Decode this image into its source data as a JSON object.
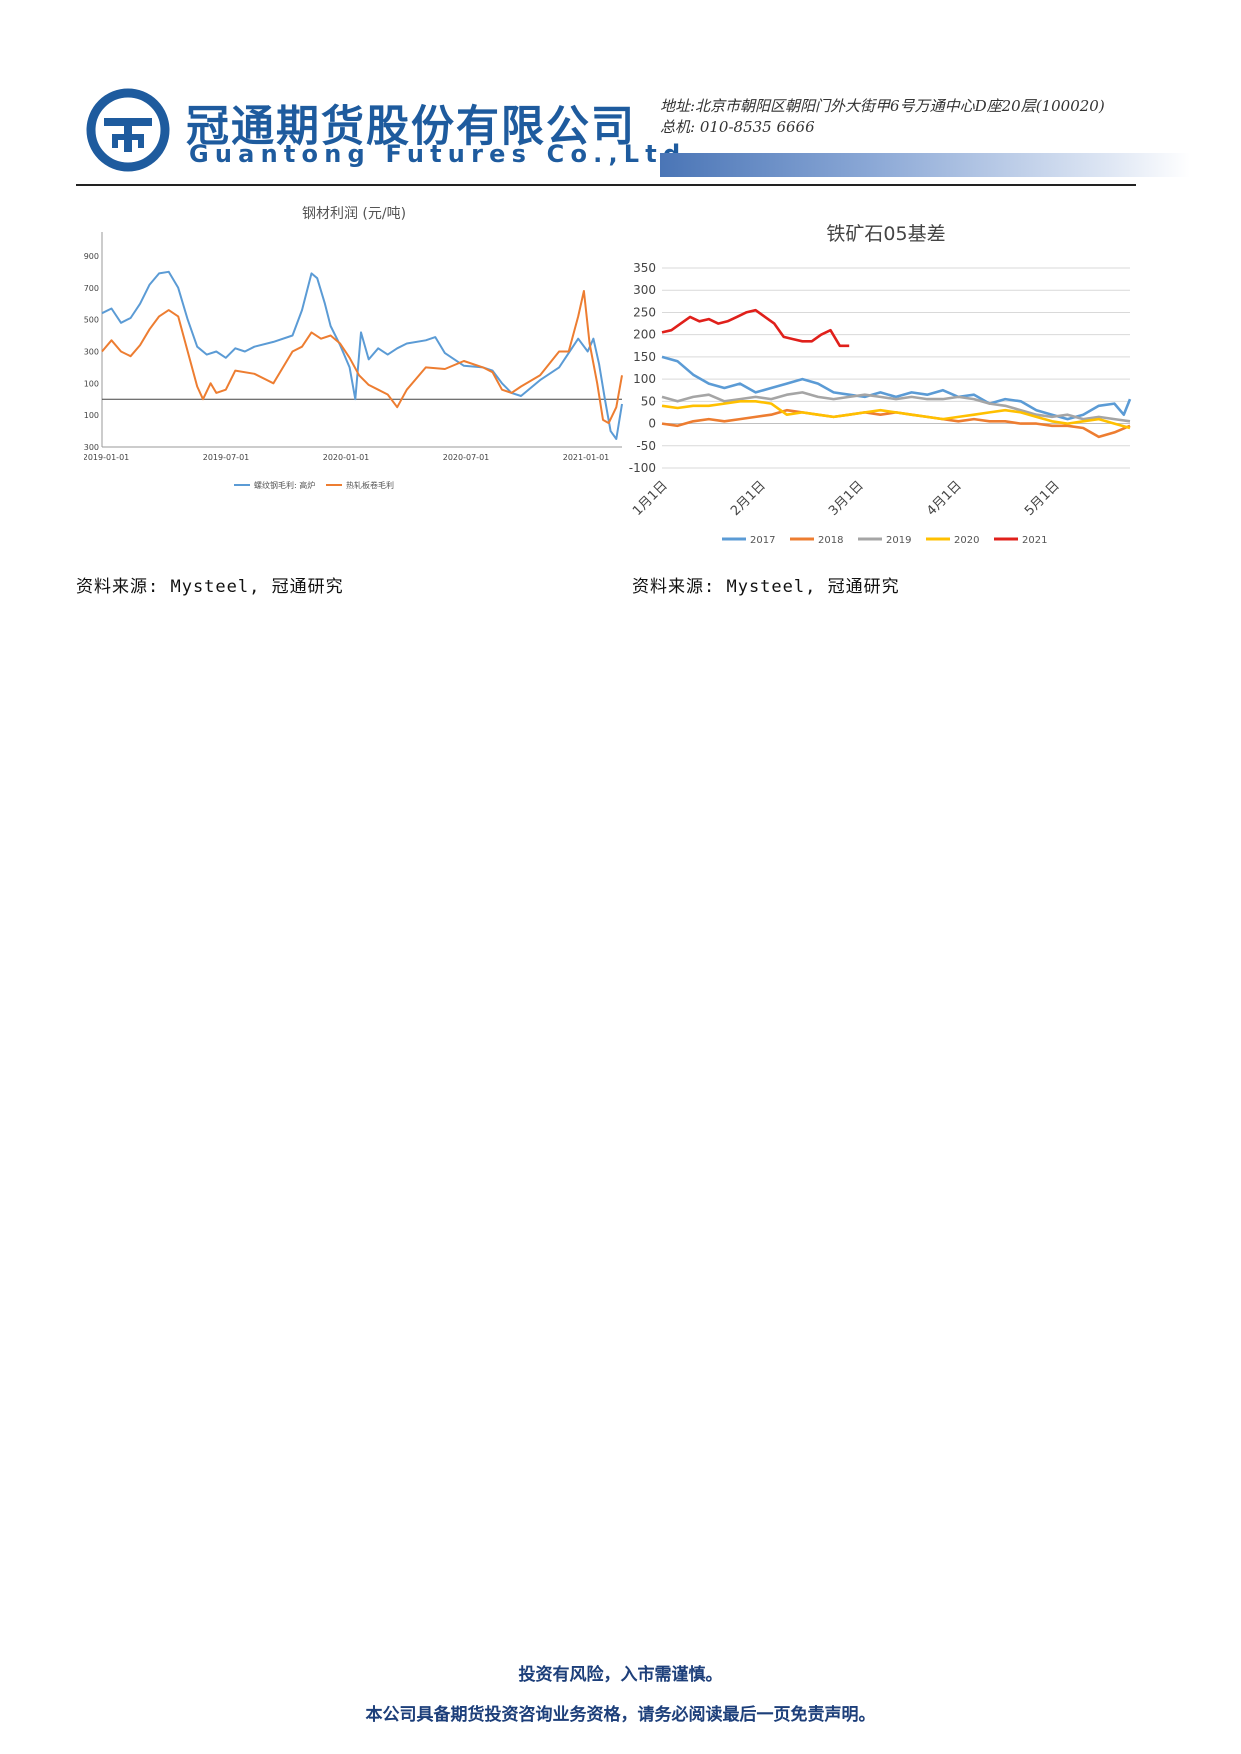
{
  "header": {
    "company_cn": "冠通期货股份有限公司",
    "company_en": "Guantong Futures Co.,Ltd",
    "address": "地址:北京市朝阳区朝阳门外大街甲6号万通中心D座20层(100020)",
    "phone": "总机: 010-8535 6666",
    "brand_color": "#1e5b9e"
  },
  "sources": {
    "left": "资料来源: Mysteel, 冠通研究",
    "right": "资料来源: Mysteel, 冠通研究"
  },
  "footer": {
    "line1": "投资有风险，入市需谨慎。",
    "line2": "本公司具备期货投资咨询业务资格，请务必阅读最后一页免责声明。"
  },
  "chart_data": [
    {
      "type": "line",
      "title": "钢材利润 (元/吨)",
      "xlabel": "",
      "ylabel": "",
      "ylim": [
        -300,
        1000
      ],
      "yticks": [
        900,
        700,
        500,
        300,
        100,
        -100,
        -300
      ],
      "xticks": [
        "2019-01-01",
        "2019-07-01",
        "2020-01-01",
        "2020-07-01",
        "2021-01-01"
      ],
      "xrange": [
        0,
        27.3
      ],
      "grid": false,
      "legend": "bottom",
      "series": [
        {
          "name": "螺纹钢毛利: 高炉",
          "color": "#5b9bd5",
          "points": [
            [
              0,
              540
            ],
            [
              0.5,
              570
            ],
            [
              1,
              480
            ],
            [
              1.5,
              510
            ],
            [
              2,
              600
            ],
            [
              2.5,
              720
            ],
            [
              3,
              790
            ],
            [
              3.5,
              800
            ],
            [
              4,
              700
            ],
            [
              4.5,
              500
            ],
            [
              5,
              330
            ],
            [
              5.5,
              280
            ],
            [
              6,
              300
            ],
            [
              6.5,
              260
            ],
            [
              7,
              320
            ],
            [
              7.5,
              300
            ],
            [
              8,
              330
            ],
            [
              9,
              360
            ],
            [
              10,
              400
            ],
            [
              10.5,
              560
            ],
            [
              11,
              790
            ],
            [
              11.3,
              760
            ],
            [
              11.7,
              600
            ],
            [
              12,
              460
            ],
            [
              12.5,
              340
            ],
            [
              13,
              200
            ],
            [
              13.3,
              0
            ],
            [
              13.6,
              420
            ],
            [
              14,
              250
            ],
            [
              14.5,
              320
            ],
            [
              15,
              280
            ],
            [
              15.5,
              320
            ],
            [
              16,
              350
            ],
            [
              17,
              370
            ],
            [
              17.5,
              390
            ],
            [
              18,
              290
            ],
            [
              19,
              210
            ],
            [
              20,
              200
            ],
            [
              20.5,
              180
            ],
            [
              21,
              100
            ],
            [
              21.5,
              40
            ],
            [
              22,
              20
            ],
            [
              23,
              120
            ],
            [
              24,
              200
            ],
            [
              25,
              380
            ],
            [
              25.5,
              300
            ],
            [
              25.8,
              380
            ],
            [
              26.1,
              220
            ],
            [
              26.4,
              0
            ],
            [
              26.7,
              -200
            ],
            [
              27,
              -250
            ],
            [
              27.3,
              -30
            ]
          ]
        },
        {
          "name": "热轧板卷毛利",
          "color": "#ed7d31",
          "points": [
            [
              0,
              300
            ],
            [
              0.5,
              370
            ],
            [
              1,
              300
            ],
            [
              1.5,
              270
            ],
            [
              2,
              340
            ],
            [
              2.5,
              440
            ],
            [
              3,
              520
            ],
            [
              3.5,
              560
            ],
            [
              4,
              520
            ],
            [
              4.5,
              300
            ],
            [
              5,
              80
            ],
            [
              5.3,
              0
            ],
            [
              5.7,
              100
            ],
            [
              6,
              40
            ],
            [
              6.5,
              60
            ],
            [
              7,
              180
            ],
            [
              8,
              160
            ],
            [
              9,
              100
            ],
            [
              10,
              300
            ],
            [
              10.5,
              330
            ],
            [
              11,
              420
            ],
            [
              11.5,
              380
            ],
            [
              12,
              400
            ],
            [
              12.5,
              350
            ],
            [
              13,
              260
            ],
            [
              13.5,
              150
            ],
            [
              14,
              90
            ],
            [
              14.5,
              60
            ],
            [
              15,
              30
            ],
            [
              15.5,
              -50
            ],
            [
              16,
              60
            ],
            [
              17,
              200
            ],
            [
              18,
              190
            ],
            [
              19,
              240
            ],
            [
              20,
              200
            ],
            [
              20.5,
              170
            ],
            [
              21,
              60
            ],
            [
              21.5,
              40
            ],
            [
              22,
              80
            ],
            [
              23,
              150
            ],
            [
              24,
              300
            ],
            [
              24.5,
              300
            ],
            [
              25,
              520
            ],
            [
              25.3,
              680
            ],
            [
              25.6,
              350
            ],
            [
              26,
              100
            ],
            [
              26.3,
              -130
            ],
            [
              26.6,
              -150
            ],
            [
              27,
              -50
            ],
            [
              27.3,
              150
            ]
          ]
        }
      ]
    },
    {
      "type": "line",
      "title": "铁矿石05基差",
      "xlabel": "",
      "ylabel": "",
      "ylim": [
        -100,
        350
      ],
      "yticks": [
        350,
        300,
        250,
        200,
        150,
        100,
        50,
        0,
        -50,
        -100
      ],
      "categories": [
        "1月1日",
        "2月1日",
        "3月1日",
        "4月1日",
        "5月1日"
      ],
      "xrange": [
        0,
        150
      ],
      "grid": true,
      "legend": "bottom",
      "series": [
        {
          "name": "2017",
          "color": "#5b9bd5",
          "points": [
            [
              0,
              150
            ],
            [
              5,
              140
            ],
            [
              10,
              110
            ],
            [
              15,
              90
            ],
            [
              20,
              80
            ],
            [
              25,
              90
            ],
            [
              30,
              70
            ],
            [
              35,
              80
            ],
            [
              40,
              90
            ],
            [
              45,
              100
            ],
            [
              50,
              90
            ],
            [
              55,
              70
            ],
            [
              60,
              65
            ],
            [
              65,
              60
            ],
            [
              70,
              70
            ],
            [
              75,
              60
            ],
            [
              80,
              70
            ],
            [
              85,
              65
            ],
            [
              90,
              75
            ],
            [
              95,
              60
            ],
            [
              100,
              65
            ],
            [
              105,
              45
            ],
            [
              110,
              55
            ],
            [
              115,
              50
            ],
            [
              120,
              30
            ],
            [
              125,
              20
            ],
            [
              130,
              10
            ],
            [
              135,
              20
            ],
            [
              140,
              40
            ],
            [
              145,
              45
            ],
            [
              148,
              20
            ],
            [
              150,
              55
            ]
          ]
        },
        {
          "name": "2018",
          "color": "#ed7d31",
          "points": [
            [
              0,
              0
            ],
            [
              5,
              -5
            ],
            [
              10,
              5
            ],
            [
              15,
              10
            ],
            [
              20,
              5
            ],
            [
              25,
              10
            ],
            [
              30,
              15
            ],
            [
              35,
              20
            ],
            [
              40,
              30
            ],
            [
              45,
              25
            ],
            [
              50,
              20
            ],
            [
              55,
              15
            ],
            [
              60,
              20
            ],
            [
              65,
              25
            ],
            [
              70,
              20
            ],
            [
              75,
              25
            ],
            [
              80,
              20
            ],
            [
              85,
              15
            ],
            [
              90,
              10
            ],
            [
              95,
              5
            ],
            [
              100,
              10
            ],
            [
              105,
              5
            ],
            [
              110,
              5
            ],
            [
              115,
              0
            ],
            [
              120,
              0
            ],
            [
              125,
              -5
            ],
            [
              130,
              -5
            ],
            [
              135,
              -10
            ],
            [
              140,
              -30
            ],
            [
              145,
              -20
            ],
            [
              150,
              -5
            ]
          ]
        },
        {
          "name": "2019",
          "color": "#a5a5a5",
          "points": [
            [
              0,
              60
            ],
            [
              5,
              50
            ],
            [
              10,
              60
            ],
            [
              15,
              65
            ],
            [
              20,
              50
            ],
            [
              25,
              55
            ],
            [
              30,
              60
            ],
            [
              35,
              55
            ],
            [
              40,
              65
            ],
            [
              45,
              70
            ],
            [
              50,
              60
            ],
            [
              55,
              55
            ],
            [
              60,
              60
            ],
            [
              65,
              65
            ],
            [
              70,
              60
            ],
            [
              75,
              55
            ],
            [
              80,
              60
            ],
            [
              85,
              55
            ],
            [
              90,
              55
            ],
            [
              95,
              60
            ],
            [
              100,
              55
            ],
            [
              105,
              45
            ],
            [
              110,
              40
            ],
            [
              115,
              30
            ],
            [
              120,
              20
            ],
            [
              125,
              15
            ],
            [
              130,
              20
            ],
            [
              135,
              10
            ],
            [
              140,
              15
            ],
            [
              145,
              10
            ],
            [
              150,
              5
            ]
          ]
        },
        {
          "name": "2020",
          "color": "#ffc000",
          "points": [
            [
              0,
              40
            ],
            [
              5,
              35
            ],
            [
              10,
              40
            ],
            [
              15,
              40
            ],
            [
              20,
              45
            ],
            [
              25,
              50
            ],
            [
              30,
              50
            ],
            [
              35,
              45
            ],
            [
              40,
              20
            ],
            [
              45,
              25
            ],
            [
              50,
              20
            ],
            [
              55,
              15
            ],
            [
              60,
              20
            ],
            [
              65,
              25
            ],
            [
              70,
              30
            ],
            [
              75,
              25
            ],
            [
              80,
              20
            ],
            [
              85,
              15
            ],
            [
              90,
              10
            ],
            [
              95,
              15
            ],
            [
              100,
              20
            ],
            [
              105,
              25
            ],
            [
              110,
              30
            ],
            [
              115,
              25
            ],
            [
              120,
              15
            ],
            [
              125,
              5
            ],
            [
              130,
              0
            ],
            [
              135,
              5
            ],
            [
              140,
              10
            ],
            [
              145,
              0
            ],
            [
              150,
              -10
            ]
          ]
        },
        {
          "name": "2021",
          "color": "#e0201b",
          "points": [
            [
              0,
              205
            ],
            [
              3,
              210
            ],
            [
              6,
              225
            ],
            [
              9,
              240
            ],
            [
              12,
              230
            ],
            [
              15,
              235
            ],
            [
              18,
              225
            ],
            [
              21,
              230
            ],
            [
              24,
              240
            ],
            [
              27,
              250
            ],
            [
              30,
              255
            ],
            [
              33,
              240
            ],
            [
              36,
              225
            ],
            [
              39,
              195
            ],
            [
              42,
              190
            ],
            [
              45,
              185
            ],
            [
              48,
              185
            ],
            [
              51,
              200
            ],
            [
              54,
              210
            ],
            [
              57,
              175
            ],
            [
              60,
              175
            ]
          ]
        }
      ]
    }
  ]
}
